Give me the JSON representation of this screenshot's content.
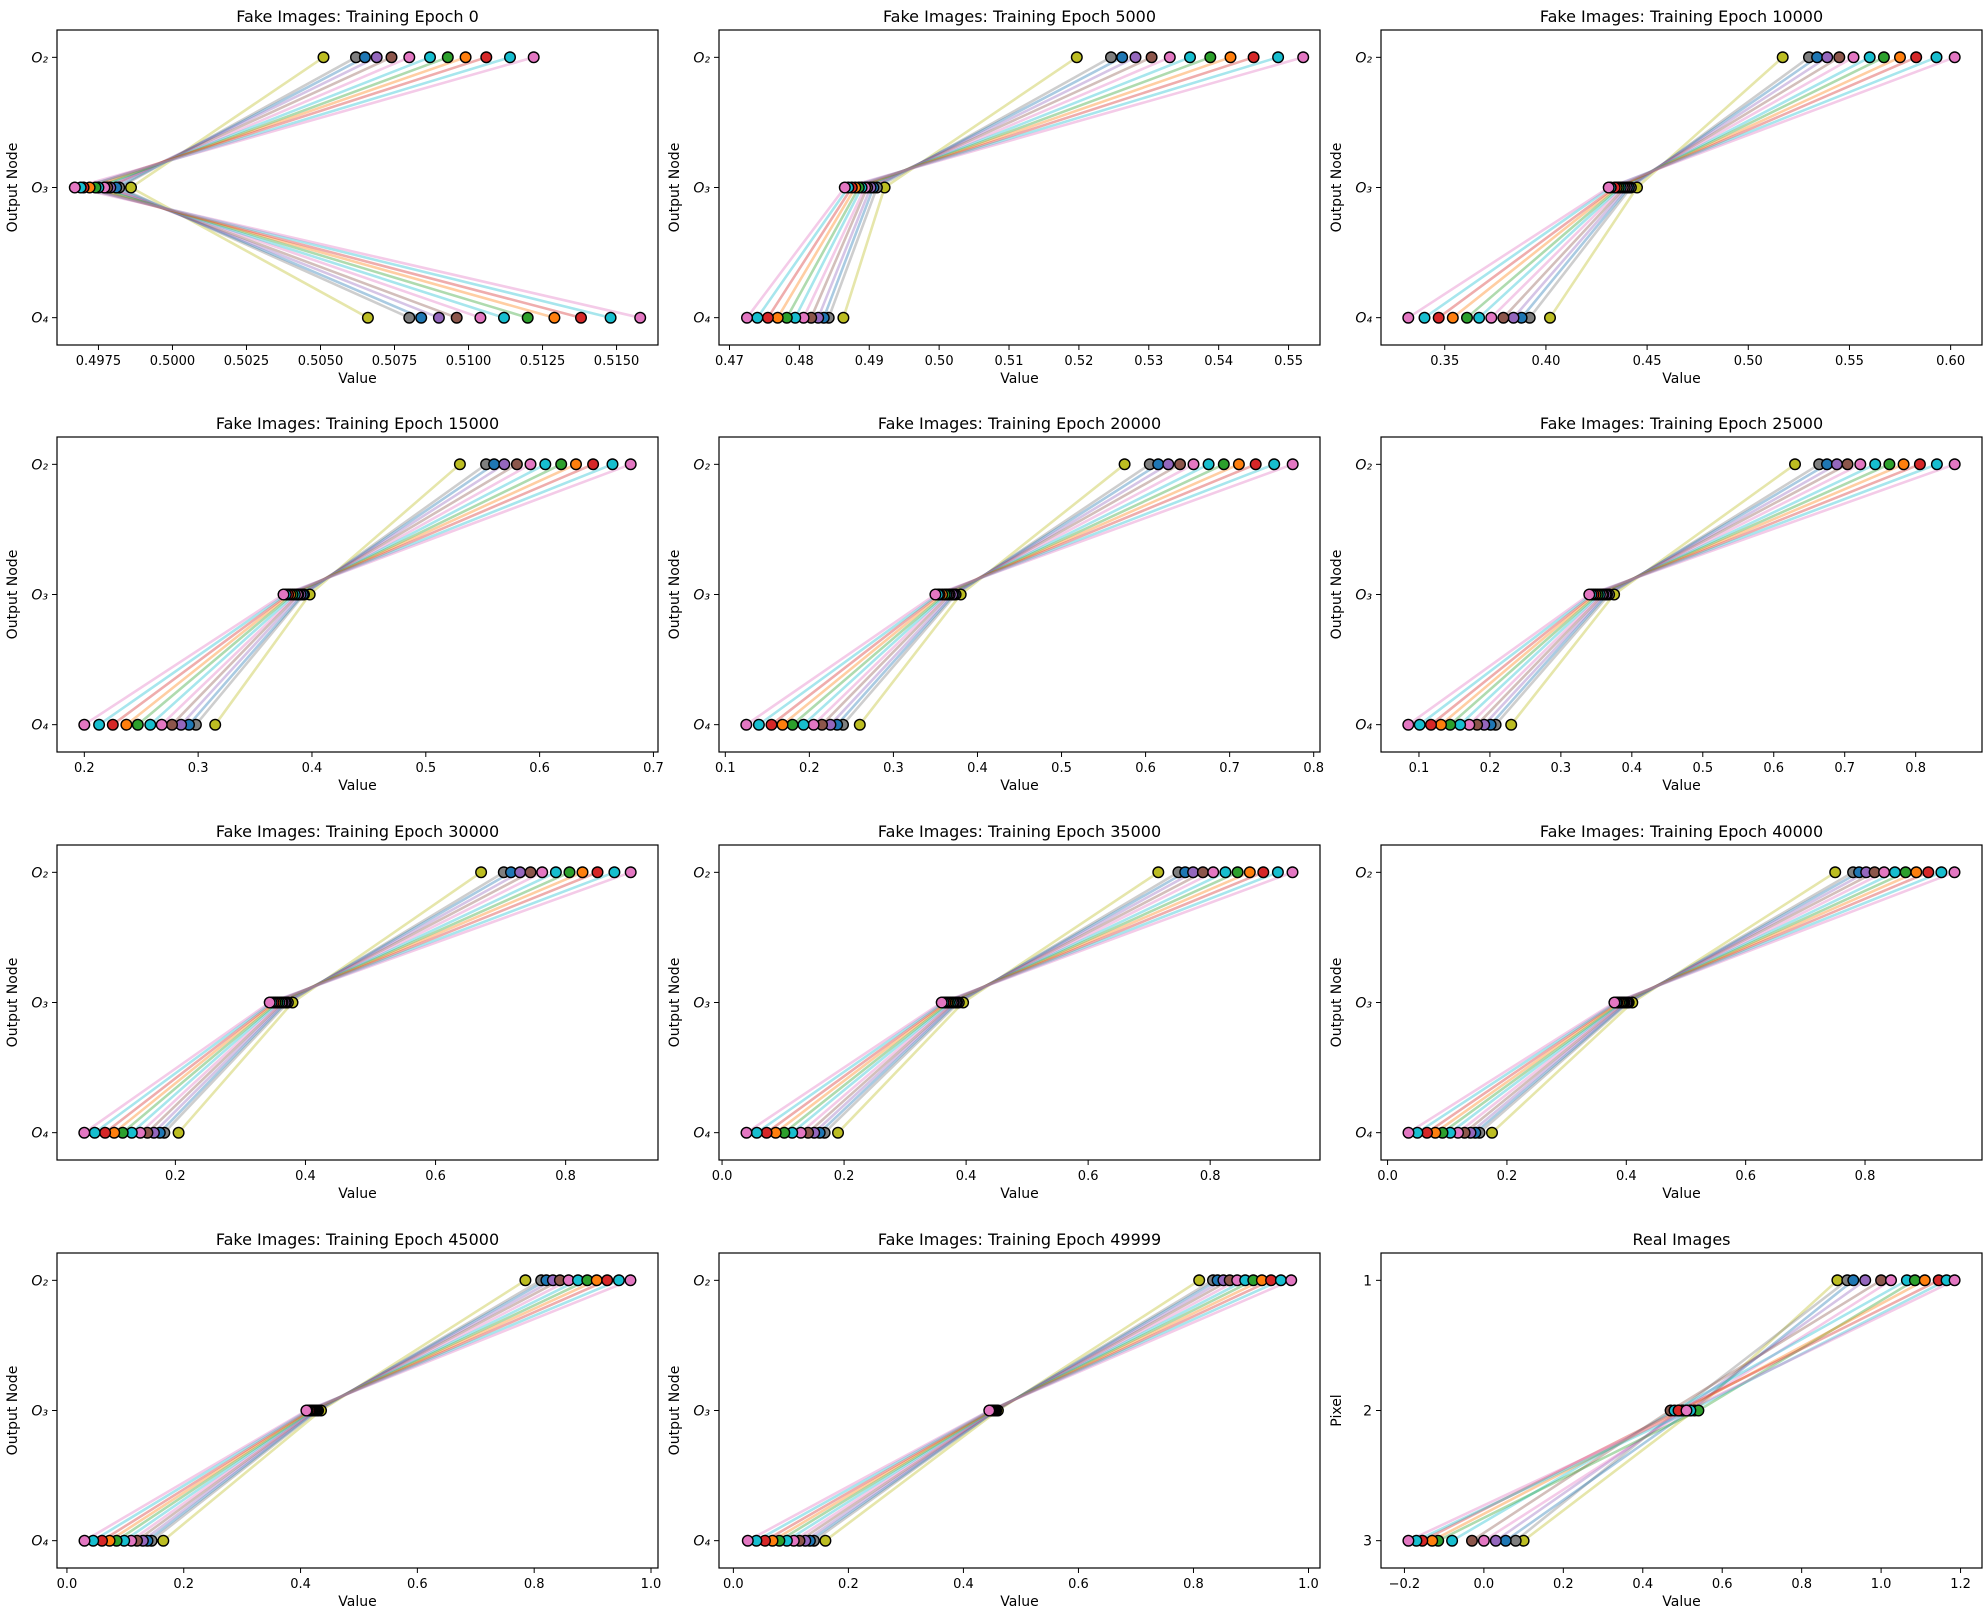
{
  "sample_colors": [
    "#bcbd22",
    "#7f7f7f",
    "#1f77b4",
    "#9467bd",
    "#8c564b",
    "#e377c2",
    "#17becf",
    "#2ca02c",
    "#ff7f0e",
    "#d62728",
    "#17becf",
    "#e377c2"
  ],
  "chart_data": [
    {
      "type": "line",
      "title": "Fake Images: Training Epoch 0",
      "xlabel": "Value",
      "ylabel": "Output Node",
      "yticklabels": [
        "O₂",
        "O₃",
        "O₄"
      ],
      "xlim": [
        0.4961,
        0.5164
      ],
      "xticks": [
        0.4975,
        0.5,
        0.5025,
        0.505,
        0.5075,
        0.51,
        0.5125,
        0.515
      ],
      "xticklabels": [
        "0.4975",
        "0.5000",
        "0.5025",
        "0.5050",
        "0.5075",
        "0.5100",
        "0.5125",
        "0.5150"
      ],
      "series": [
        [
          0.5051,
          0.5062,
          0.5065,
          0.5069,
          0.5074,
          0.508,
          0.5087,
          0.5093,
          0.5099,
          0.5106,
          0.5114,
          0.5122
        ],
        [
          0.4986,
          0.4982,
          0.4981,
          0.4979,
          0.4978,
          0.4977,
          0.4975,
          0.4974,
          0.4972,
          0.497,
          0.4969,
          0.4967
        ],
        [
          0.5066,
          0.508,
          0.5084,
          0.509,
          0.5096,
          0.5104,
          0.5112,
          0.512,
          0.5129,
          0.5138,
          0.5148,
          0.5158
        ]
      ]
    },
    {
      "type": "line",
      "title": "Fake Images: Training Epoch 5000",
      "xlabel": "Value",
      "ylabel": "Output Node",
      "yticklabels": [
        "O₂",
        "O₃",
        "O₄"
      ],
      "xlim": [
        0.4685,
        0.5545
      ],
      "xticks": [
        0.47,
        0.48,
        0.49,
        0.5,
        0.51,
        0.52,
        0.53,
        0.54,
        0.55
      ],
      "xticklabels": [
        "0.47",
        "0.48",
        "0.49",
        "0.50",
        "0.51",
        "0.52",
        "0.53",
        "0.54",
        "0.55"
      ],
      "series": [
        [
          0.5197,
          0.5246,
          0.5262,
          0.5281,
          0.5304,
          0.533,
          0.5359,
          0.5388,
          0.5417,
          0.545,
          0.5485,
          0.5521
        ],
        [
          0.4922,
          0.4911,
          0.4906,
          0.4902,
          0.4897,
          0.4894,
          0.4889,
          0.4885,
          0.488,
          0.4875,
          0.487,
          0.4865
        ],
        [
          0.4863,
          0.4842,
          0.4835,
          0.4827,
          0.4817,
          0.4806,
          0.4794,
          0.4782,
          0.4769,
          0.4755,
          0.474,
          0.4725
        ]
      ]
    },
    {
      "type": "line",
      "title": "Fake Images: Training Epoch 10000",
      "xlabel": "Value",
      "ylabel": "Output Node",
      "yticklabels": [
        "O₂",
        "O₃",
        "O₄"
      ],
      "xlim": [
        0.3185,
        0.6155
      ],
      "xticks": [
        0.35,
        0.4,
        0.45,
        0.5,
        0.55,
        0.6
      ],
      "xticklabels": [
        "0.35",
        "0.40",
        "0.45",
        "0.50",
        "0.55",
        "0.60"
      ],
      "series": [
        [
          0.517,
          0.53,
          0.534,
          0.539,
          0.545,
          0.552,
          0.56,
          0.567,
          0.575,
          0.583,
          0.593,
          0.602
        ],
        [
          0.445,
          0.442,
          0.441,
          0.44,
          0.439,
          0.438,
          0.437,
          0.436,
          0.435,
          0.434,
          0.432,
          0.431
        ],
        [
          0.402,
          0.392,
          0.388,
          0.384,
          0.379,
          0.373,
          0.367,
          0.361,
          0.354,
          0.347,
          0.34,
          0.332
        ]
      ]
    },
    {
      "type": "line",
      "title": "Fake Images: Training Epoch 15000",
      "xlabel": "Value",
      "ylabel": "Output Node",
      "yticklabels": [
        "O₂",
        "O₃",
        "O₄"
      ],
      "xlim": [
        0.176,
        0.704
      ],
      "xticks": [
        0.2,
        0.3,
        0.4,
        0.5,
        0.6,
        0.7
      ],
      "xticklabels": [
        "0.2",
        "0.3",
        "0.4",
        "0.5",
        "0.6",
        "0.7"
      ],
      "series": [
        [
          0.53,
          0.553,
          0.56,
          0.569,
          0.58,
          0.592,
          0.605,
          0.619,
          0.632,
          0.647,
          0.664,
          0.68
        ],
        [
          0.398,
          0.393,
          0.392,
          0.39,
          0.388,
          0.387,
          0.385,
          0.383,
          0.381,
          0.379,
          0.377,
          0.375
        ],
        [
          0.315,
          0.298,
          0.292,
          0.285,
          0.277,
          0.268,
          0.258,
          0.247,
          0.237,
          0.225,
          0.213,
          0.2
        ]
      ]
    },
    {
      "type": "line",
      "title": "Fake Images: Training Epoch 20000",
      "xlabel": "Value",
      "ylabel": "Output Node",
      "yticklabels": [
        "O₂",
        "O₃",
        "O₄"
      ],
      "xlim": [
        0.0925,
        0.8075
      ],
      "xticks": [
        0.1,
        0.2,
        0.3,
        0.4,
        0.5,
        0.6,
        0.7,
        0.8
      ],
      "xticklabels": [
        "0.1",
        "0.2",
        "0.3",
        "0.4",
        "0.5",
        "0.6",
        "0.7",
        "0.8"
      ],
      "series": [
        [
          0.575,
          0.605,
          0.615,
          0.627,
          0.641,
          0.657,
          0.675,
          0.693,
          0.711,
          0.731,
          0.753,
          0.775
        ],
        [
          0.38,
          0.374,
          0.372,
          0.37,
          0.367,
          0.365,
          0.363,
          0.361,
          0.358,
          0.355,
          0.353,
          0.35
        ],
        [
          0.26,
          0.24,
          0.233,
          0.225,
          0.215,
          0.205,
          0.193,
          0.18,
          0.168,
          0.155,
          0.14,
          0.125
        ]
      ]
    },
    {
      "type": "line",
      "title": "Fake Images: Training Epoch 25000",
      "xlabel": "Value",
      "ylabel": "Output Node",
      "yticklabels": [
        "O₂",
        "O₃",
        "O₄"
      ],
      "xlim": [
        0.0465,
        0.8935
      ],
      "xticks": [
        0.1,
        0.2,
        0.3,
        0.4,
        0.5,
        0.6,
        0.7,
        0.8
      ],
      "xticklabels": [
        "0.1",
        "0.2",
        "0.3",
        "0.4",
        "0.5",
        "0.6",
        "0.7",
        "0.8"
      ],
      "series": [
        [
          0.63,
          0.664,
          0.675,
          0.689,
          0.704,
          0.722,
          0.743,
          0.763,
          0.783,
          0.806,
          0.83,
          0.855
        ],
        [
          0.375,
          0.368,
          0.365,
          0.363,
          0.36,
          0.358,
          0.355,
          0.352,
          0.349,
          0.346,
          0.343,
          0.34
        ],
        [
          0.23,
          0.208,
          0.201,
          0.192,
          0.182,
          0.171,
          0.158,
          0.144,
          0.131,
          0.117,
          0.101,
          0.085
        ]
      ]
    },
    {
      "type": "line",
      "title": "Fake Images: Training Epoch 30000",
      "xlabel": "Value",
      "ylabel": "Output Node",
      "yticklabels": [
        "O₂",
        "O₃",
        "O₄"
      ],
      "xlim": [
        0.018,
        0.942
      ],
      "xticks": [
        0.2,
        0.4,
        0.6,
        0.8
      ],
      "xticklabels": [
        "0.2",
        "0.4",
        "0.6",
        "0.8"
      ],
      "series": [
        [
          0.67,
          0.705,
          0.716,
          0.73,
          0.746,
          0.764,
          0.785,
          0.806,
          0.826,
          0.849,
          0.875,
          0.9
        ],
        [
          0.38,
          0.373,
          0.37,
          0.368,
          0.365,
          0.363,
          0.36,
          0.357,
          0.354,
          0.351,
          0.348,
          0.345
        ],
        [
          0.205,
          0.183,
          0.176,
          0.167,
          0.157,
          0.146,
          0.133,
          0.119,
          0.106,
          0.092,
          0.076,
          0.06
        ]
      ]
    },
    {
      "type": "line",
      "title": "Fake Images: Training Epoch 35000",
      "xlabel": "Value",
      "ylabel": "Output Node",
      "yticklabels": [
        "O₂",
        "O₃",
        "O₄"
      ],
      "xlim": [
        -0.005,
        0.98
      ],
      "xticks": [
        0,
        0.2,
        0.4,
        0.6,
        0.8
      ],
      "xticklabels": [
        "0.0",
        "0.2",
        "0.4",
        "0.6",
        "0.8"
      ],
      "series": [
        [
          0.715,
          0.748,
          0.759,
          0.772,
          0.788,
          0.805,
          0.825,
          0.845,
          0.865,
          0.887,
          0.911,
          0.935
        ],
        [
          0.395,
          0.388,
          0.385,
          0.383,
          0.38,
          0.378,
          0.375,
          0.372,
          0.369,
          0.366,
          0.363,
          0.36
        ],
        [
          0.19,
          0.168,
          0.16,
          0.151,
          0.141,
          0.129,
          0.115,
          0.102,
          0.088,
          0.073,
          0.057,
          0.04
        ]
      ]
    },
    {
      "type": "line",
      "title": "Fake Images: Training Epoch 40000",
      "xlabel": "Value",
      "ylabel": "Output Node",
      "yticklabels": [
        "O₂",
        "O₃",
        "O₄"
      ],
      "xlim": [
        -0.011,
        0.996
      ],
      "xticks": [
        0,
        0.2,
        0.4,
        0.6,
        0.8
      ],
      "xticklabels": [
        "0.0",
        "0.2",
        "0.4",
        "0.6",
        "0.8"
      ],
      "series": [
        [
          0.75,
          0.78,
          0.79,
          0.802,
          0.816,
          0.832,
          0.85,
          0.868,
          0.886,
          0.906,
          0.928,
          0.95
        ],
        [
          0.41,
          0.404,
          0.402,
          0.4,
          0.397,
          0.395,
          0.393,
          0.391,
          0.388,
          0.385,
          0.383,
          0.38
        ],
        [
          0.175,
          0.154,
          0.147,
          0.139,
          0.129,
          0.118,
          0.105,
          0.092,
          0.08,
          0.066,
          0.05,
          0.035
        ]
      ]
    },
    {
      "type": "line",
      "title": "Fake Images: Training Epoch 45000",
      "xlabel": "Value",
      "ylabel": "Output Node",
      "yticklabels": [
        "O₂",
        "O₃",
        "O₄"
      ],
      "xlim": [
        -0.017,
        1.012
      ],
      "xticks": [
        0,
        0.2,
        0.4,
        0.6,
        0.8,
        1.0
      ],
      "xticklabels": [
        "0.0",
        "0.2",
        "0.4",
        "0.6",
        "0.8",
        "1.0"
      ],
      "series": [
        [
          0.785,
          0.812,
          0.821,
          0.832,
          0.844,
          0.859,
          0.875,
          0.891,
          0.907,
          0.925,
          0.945,
          0.965
        ],
        [
          0.435,
          0.43,
          0.428,
          0.426,
          0.424,
          0.423,
          0.421,
          0.419,
          0.417,
          0.415,
          0.412,
          0.41
        ],
        [
          0.165,
          0.145,
          0.138,
          0.13,
          0.12,
          0.11,
          0.098,
          0.085,
          0.073,
          0.06,
          0.045,
          0.03
        ]
      ]
    },
    {
      "type": "line",
      "title": "Fake Images: Training Epoch 49999",
      "xlabel": "Value",
      "ylabel": "Output Node",
      "yticklabels": [
        "O₂",
        "O₃",
        "O₄"
      ],
      "xlim": [
        -0.025,
        1.02
      ],
      "xticks": [
        0,
        0.2,
        0.4,
        0.6,
        0.8,
        1.0
      ],
      "xticklabels": [
        "0.0",
        "0.2",
        "0.4",
        "0.6",
        "0.8",
        "1.0"
      ],
      "series": [
        [
          0.81,
          0.834,
          0.842,
          0.852,
          0.863,
          0.876,
          0.89,
          0.904,
          0.919,
          0.935,
          0.952,
          0.97
        ],
        [
          0.46,
          0.457,
          0.456,
          0.455,
          0.454,
          0.453,
          0.451,
          0.45,
          0.449,
          0.448,
          0.446,
          0.445
        ],
        [
          0.16,
          0.14,
          0.133,
          0.125,
          0.115,
          0.105,
          0.093,
          0.08,
          0.068,
          0.055,
          0.04,
          0.025
        ]
      ]
    },
    {
      "type": "line",
      "title": "Real Images",
      "xlabel": "Value",
      "ylabel": "Pixel",
      "yticklabels": [
        "1",
        "2",
        "3"
      ],
      "xlim": [
        -0.259,
        1.254
      ],
      "xticks": [
        -0.2,
        0,
        0.2,
        0.4,
        0.6,
        0.8,
        1.0,
        1.2
      ],
      "xticklabels": [
        "−0.2",
        "0.0",
        "0.2",
        "0.4",
        "0.6",
        "0.8",
        "1.0",
        "1.2"
      ],
      "series": [
        [
          0.89,
          0.915,
          0.93,
          0.96,
          1.0,
          1.025,
          1.065,
          1.085,
          1.11,
          1.145,
          1.165,
          1.185
        ],
        [
          0.53,
          0.49,
          0.52,
          0.5,
          0.47,
          0.51,
          0.48,
          0.54,
          0.5,
          0.49,
          0.52,
          0.51
        ],
        [
          0.1,
          0.08,
          0.055,
          0.03,
          -0.03,
          0.0,
          -0.08,
          -0.115,
          -0.13,
          -0.155,
          -0.17,
          -0.19
        ]
      ]
    }
  ]
}
